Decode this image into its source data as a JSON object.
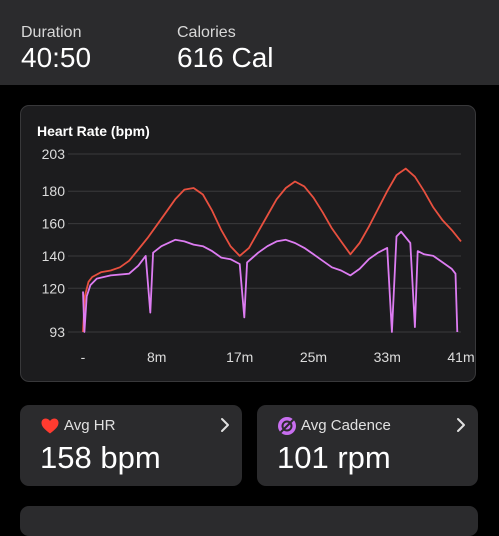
{
  "summary": {
    "duration": {
      "label": "Duration",
      "value": "40:50"
    },
    "calories": {
      "label": "Calories",
      "value": "616 Cal"
    }
  },
  "chart_data": {
    "type": "line",
    "title": "Heart Rate (bpm)",
    "xlabel": "",
    "ylabel": "",
    "x_unit": "minutes",
    "xlim": [
      0,
      41
    ],
    "ylim": [
      93,
      203
    ],
    "yticks": [
      93,
      120,
      140,
      160,
      180,
      203
    ],
    "xticks": [
      {
        "label": "-",
        "x": 0
      },
      {
        "label": "8m",
        "x": 8
      },
      {
        "label": "17m",
        "x": 17
      },
      {
        "label": "25m",
        "x": 25
      },
      {
        "label": "33m",
        "x": 33
      },
      {
        "label": "41m",
        "x": 41
      }
    ],
    "grid": true,
    "legend": "none",
    "series": [
      {
        "color": "#e8503f",
        "points": [
          [
            0,
            93
          ],
          [
            0.2,
            115
          ],
          [
            0.6,
            124
          ],
          [
            1,
            127
          ],
          [
            2,
            130
          ],
          [
            3,
            131
          ],
          [
            4,
            133
          ],
          [
            5,
            137
          ],
          [
            6,
            144
          ],
          [
            7,
            151
          ],
          [
            8,
            159
          ],
          [
            9,
            167
          ],
          [
            10,
            175
          ],
          [
            11,
            181
          ],
          [
            12,
            182
          ],
          [
            13,
            178
          ],
          [
            14,
            168
          ],
          [
            15,
            156
          ],
          [
            16,
            146
          ],
          [
            17,
            140
          ],
          [
            18,
            145
          ],
          [
            19,
            155
          ],
          [
            20,
            165
          ],
          [
            21,
            175
          ],
          [
            22,
            182
          ],
          [
            23,
            186
          ],
          [
            24,
            183
          ],
          [
            25,
            176
          ],
          [
            26,
            167
          ],
          [
            27,
            157
          ],
          [
            28,
            149
          ],
          [
            29,
            141
          ],
          [
            30,
            148
          ],
          [
            31,
            158
          ],
          [
            32,
            169
          ],
          [
            33,
            180
          ],
          [
            34,
            190
          ],
          [
            35,
            194
          ],
          [
            36,
            189
          ],
          [
            37,
            180
          ],
          [
            38,
            170
          ],
          [
            39,
            162
          ],
          [
            40,
            156
          ],
          [
            41,
            149
          ]
        ]
      },
      {
        "color": "#dd7cf2",
        "points": [
          [
            0,
            118
          ],
          [
            0.15,
            93
          ],
          [
            0.4,
            115
          ],
          [
            0.8,
            122
          ],
          [
            1.5,
            126
          ],
          [
            3,
            128
          ],
          [
            5,
            129
          ],
          [
            6,
            134
          ],
          [
            6.8,
            140
          ],
          [
            7.3,
            105
          ],
          [
            7.6,
            142
          ],
          [
            8.5,
            146
          ],
          [
            10,
            150
          ],
          [
            11,
            149
          ],
          [
            12,
            147
          ],
          [
            13,
            146
          ],
          [
            14,
            143
          ],
          [
            15,
            139
          ],
          [
            16,
            138
          ],
          [
            17,
            135
          ],
          [
            17.5,
            102
          ],
          [
            17.8,
            136
          ],
          [
            19,
            142
          ],
          [
            20,
            146
          ],
          [
            21,
            149
          ],
          [
            22,
            150
          ],
          [
            23,
            148
          ],
          [
            24,
            145
          ],
          [
            25,
            141
          ],
          [
            26,
            137
          ],
          [
            27,
            133
          ],
          [
            28,
            131
          ],
          [
            29,
            128
          ],
          [
            30,
            132
          ],
          [
            31,
            138
          ],
          [
            32,
            142
          ],
          [
            33,
            145
          ],
          [
            33.5,
            93
          ],
          [
            34,
            152
          ],
          [
            34.5,
            155
          ],
          [
            35.5,
            148
          ],
          [
            36,
            96
          ],
          [
            36.3,
            143
          ],
          [
            37,
            141
          ],
          [
            38,
            140
          ],
          [
            39,
            136
          ],
          [
            40,
            132
          ],
          [
            40.4,
            129
          ],
          [
            40.6,
            93
          ]
        ]
      }
    ]
  },
  "cards": {
    "avg_hr": {
      "label": "Avg HR",
      "value": "158 bpm",
      "icon": "heart-icon",
      "icon_color": "#ff3b30"
    },
    "avg_cadence": {
      "label": "Avg Cadence",
      "value": "101 rpm",
      "icon": "cadence-icon",
      "icon_color": "#c86ef0"
    }
  },
  "colors": {
    "background": "#000000",
    "card": "#2b2b2d",
    "chart_card": "#1c1c1e",
    "hr_line": "#e8503f",
    "cadence_line": "#dd7cf2"
  }
}
